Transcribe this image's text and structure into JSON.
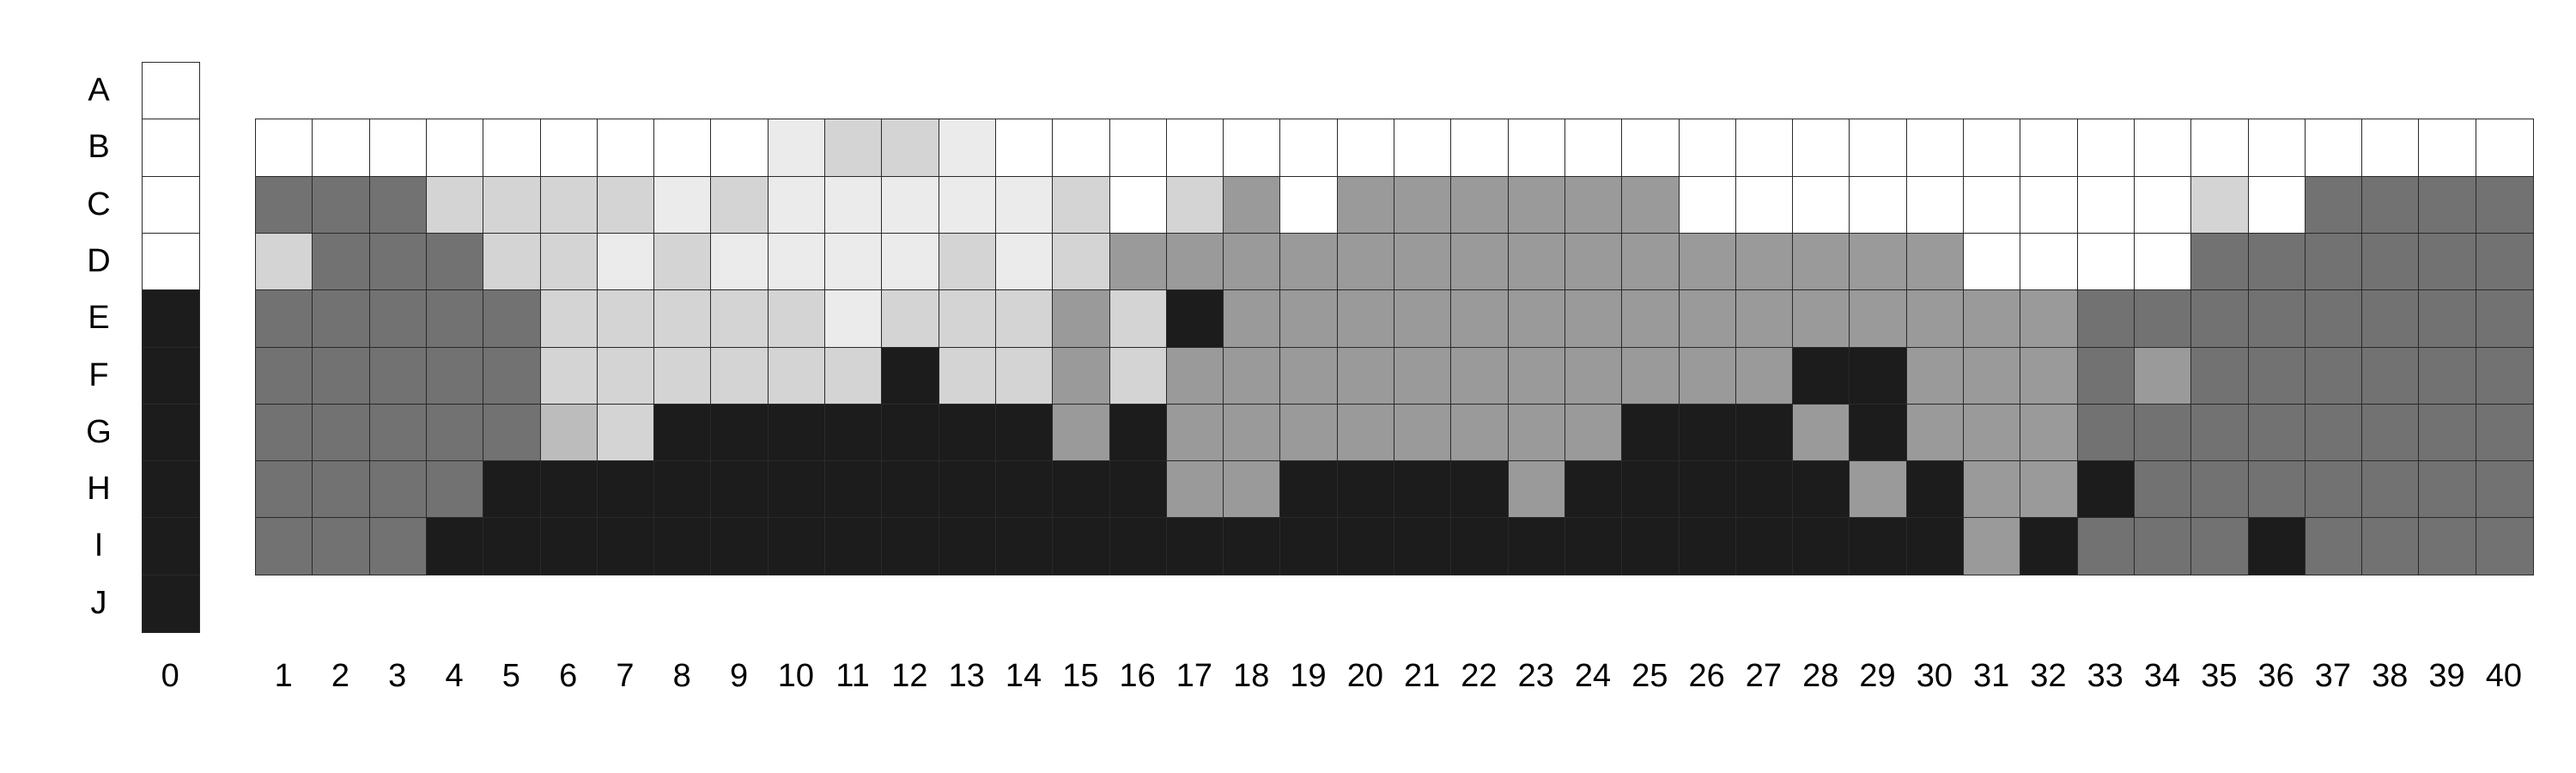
{
  "palette": {
    "0": "#ffffff",
    "1": "#ebebeb",
    "2": "#d4d4d4",
    "3": "#bcbcbc",
    "4": "#9a9a9a",
    "5": "#727272",
    "6": "#1c1c1c"
  },
  "rows": [
    "A",
    "B",
    "C",
    "D",
    "E",
    "F",
    "G",
    "H",
    "I",
    "J"
  ],
  "columns": [
    "0",
    "1",
    "2",
    "3",
    "4",
    "5",
    "6",
    "7",
    "8",
    "9",
    "10",
    "11",
    "12",
    "13",
    "14",
    "15",
    "16",
    "17",
    "18",
    "19",
    "20",
    "21",
    "22",
    "23",
    "24",
    "25",
    "26",
    "27",
    "28",
    "29",
    "30",
    "31",
    "32",
    "33",
    "34",
    "35",
    "36",
    "37",
    "38",
    "39",
    "40"
  ],
  "key_column": [
    0,
    0,
    0,
    0,
    6,
    6,
    6,
    6,
    6,
    6
  ],
  "matrix_rows": [
    "B",
    "C",
    "D",
    "E",
    "F",
    "G",
    "H",
    "I"
  ],
  "matrix": [
    [
      0,
      0,
      0,
      0,
      0,
      0,
      0,
      0,
      0,
      1,
      2,
      2,
      1,
      0,
      0,
      0,
      0,
      0,
      0,
      0,
      0,
      0,
      0,
      0,
      0,
      0,
      0,
      0,
      0,
      0,
      0,
      0,
      0,
      0,
      0,
      0,
      0,
      0,
      0,
      0
    ],
    [
      5,
      5,
      5,
      2,
      2,
      2,
      2,
      1,
      2,
      1,
      1,
      1,
      1,
      1,
      2,
      0,
      2,
      4,
      0,
      4,
      4,
      4,
      4,
      4,
      4,
      0,
      0,
      0,
      0,
      0,
      0,
      0,
      0,
      0,
      2,
      0,
      5,
      5,
      5,
      5
    ],
    [
      2,
      5,
      5,
      5,
      2,
      2,
      1,
      2,
      1,
      1,
      1,
      1,
      2,
      1,
      2,
      4,
      4,
      4,
      4,
      4,
      4,
      4,
      4,
      4,
      4,
      4,
      4,
      4,
      4,
      4,
      0,
      0,
      0,
      0,
      5,
      5,
      5,
      5,
      5,
      5
    ],
    [
      5,
      5,
      5,
      5,
      5,
      2,
      2,
      2,
      2,
      2,
      1,
      2,
      2,
      2,
      4,
      2,
      6,
      4,
      4,
      4,
      4,
      4,
      4,
      4,
      4,
      4,
      4,
      4,
      4,
      4,
      4,
      4,
      5,
      5,
      5,
      5,
      5,
      5,
      5,
      5
    ],
    [
      5,
      5,
      5,
      5,
      5,
      2,
      2,
      2,
      2,
      2,
      2,
      6,
      2,
      2,
      4,
      2,
      4,
      4,
      4,
      4,
      4,
      4,
      4,
      4,
      4,
      4,
      4,
      6,
      6,
      4,
      4,
      4,
      5,
      4,
      5,
      5,
      5,
      5,
      5,
      5
    ],
    [
      5,
      5,
      5,
      5,
      5,
      3,
      2,
      6,
      6,
      6,
      6,
      6,
      6,
      6,
      4,
      6,
      4,
      4,
      4,
      4,
      4,
      4,
      4,
      4,
      6,
      6,
      6,
      4,
      6,
      4,
      4,
      4,
      5,
      5,
      5,
      5,
      5,
      5,
      5,
      5
    ],
    [
      5,
      5,
      5,
      5,
      6,
      6,
      6,
      6,
      6,
      6,
      6,
      6,
      6,
      6,
      6,
      6,
      4,
      4,
      6,
      6,
      6,
      6,
      4,
      6,
      6,
      6,
      6,
      6,
      4,
      6,
      4,
      4,
      6,
      5,
      5,
      5,
      5,
      5,
      5,
      5
    ],
    [
      5,
      5,
      5,
      6,
      6,
      6,
      6,
      6,
      6,
      6,
      6,
      6,
      6,
      6,
      6,
      6,
      6,
      6,
      6,
      6,
      6,
      6,
      6,
      6,
      6,
      6,
      6,
      6,
      6,
      6,
      4,
      6,
      5,
      5,
      5,
      6,
      5,
      5,
      5,
      5
    ]
  ]
}
